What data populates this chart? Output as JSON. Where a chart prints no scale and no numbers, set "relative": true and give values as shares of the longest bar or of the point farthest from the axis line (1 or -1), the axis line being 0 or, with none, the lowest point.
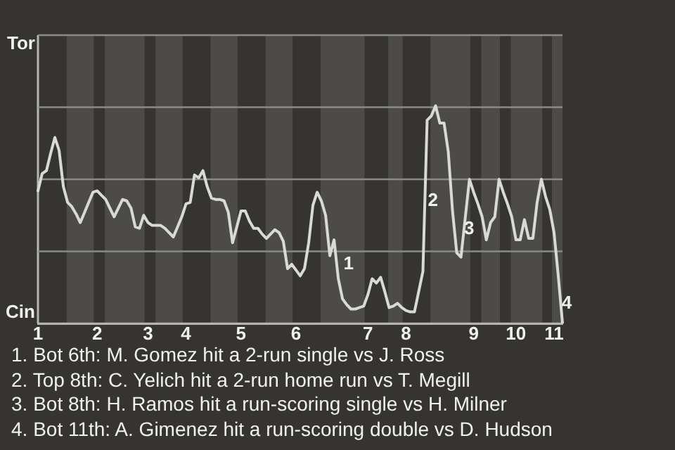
{
  "chart_data": {
    "type": "line",
    "color": "#d9d9d7",
    "relative": true,
    "categories": [
      "1",
      null,
      null,
      null,
      null,
      null,
      null,
      null,
      null,
      null,
      null,
      null,
      null,
      null,
      "2",
      null,
      null,
      null,
      null,
      null,
      null,
      null,
      null,
      null,
      null,
      null,
      "3",
      null,
      null,
      null,
      null,
      null,
      null,
      null,
      null,
      "4",
      null,
      null,
      null,
      null,
      null,
      null,
      null,
      null,
      null,
      null,
      null,
      null,
      "5",
      null,
      null,
      null,
      null,
      null,
      null,
      null,
      null,
      null,
      null,
      null,
      null,
      "6",
      null,
      null,
      null,
      null,
      null,
      null,
      null,
      null,
      null,
      null,
      null,
      null,
      null,
      null,
      null,
      null,
      "7",
      null,
      null,
      null,
      null,
      null,
      null,
      null,
      null,
      "8",
      null,
      null,
      null,
      null,
      null,
      null,
      null,
      null,
      null,
      null,
      null,
      null,
      null,
      null,
      null,
      "9",
      null,
      null,
      null,
      null,
      null,
      null,
      null,
      null,
      null,
      "10",
      null,
      null,
      null,
      null,
      null,
      null,
      null,
      null,
      "11",
      null,
      null
    ],
    "values": [
      -0.08,
      0.04,
      0.06,
      0.18,
      0.29,
      0.2,
      -0.05,
      -0.16,
      -0.19,
      -0.24,
      -0.3,
      -0.23,
      -0.16,
      -0.09,
      -0.08,
      -0.11,
      -0.14,
      -0.2,
      -0.26,
      -0.2,
      -0.14,
      -0.15,
      -0.2,
      -0.33,
      -0.34,
      -0.25,
      -0.3,
      -0.32,
      -0.32,
      -0.32,
      -0.34,
      -0.37,
      -0.4,
      -0.33,
      -0.26,
      -0.17,
      -0.16,
      0.03,
      0.01,
      0.06,
      -0.05,
      -0.13,
      -0.14,
      -0.14,
      -0.15,
      -0.23,
      -0.44,
      -0.33,
      -0.22,
      -0.22,
      -0.29,
      -0.34,
      -0.34,
      -0.38,
      -0.41,
      -0.38,
      -0.35,
      -0.37,
      -0.43,
      -0.62,
      -0.59,
      -0.63,
      -0.67,
      -0.62,
      -0.44,
      -0.18,
      -0.09,
      -0.15,
      -0.25,
      -0.53,
      -0.42,
      -0.69,
      -0.83,
      -0.87,
      -0.9,
      -0.9,
      -0.89,
      -0.88,
      -0.8,
      -0.69,
      -0.72,
      -0.68,
      -0.78,
      -0.89,
      -0.88,
      -0.86,
      -0.89,
      -0.91,
      -0.92,
      -0.92,
      -0.78,
      -0.64,
      0.41,
      0.44,
      0.51,
      0.39,
      0.39,
      0.19,
      -0.22,
      -0.51,
      -0.54,
      -0.27,
      0,
      -0.09,
      -0.17,
      -0.26,
      -0.42,
      -0.3,
      -0.26,
      0,
      -0.09,
      -0.17,
      -0.26,
      -0.42,
      -0.42,
      -0.28,
      -0.41,
      -0.41,
      -0.16,
      0,
      -0.12,
      -0.21,
      -0.37,
      -0.67,
      -1
    ],
    "ref_lines": [
      {
        "axis": "y",
        "value": 1,
        "label": "Tor",
        "color": "#8a8a88"
      },
      {
        "axis": "y",
        "value": 0.5,
        "label": null,
        "color": "#8a8a88"
      },
      {
        "axis": "y",
        "value": 0,
        "label": null,
        "color": "#8a8a88"
      },
      {
        "axis": "y",
        "value": -0.5,
        "label": null,
        "color": "#8a8a88"
      },
      {
        "axis": "y",
        "value": -1,
        "label": "Cin",
        "color": "#b5b5b3"
      }
    ],
    "annotations": [
      "1",
      "2",
      "3",
      "4",
      "1. Bot 6th: M. Gomez hit a 2-run single vs J. Ross",
      "2. Top 8th: C. Yelich hit a 2-run home run vs T. Megill",
      "3. Bot 8th: H. Ramos hit a run-scoring single vs H. Milner",
      "4. Bot 11th: A. Gimenez hit a run-scoring double vs D. Hudson"
    ]
  }
}
